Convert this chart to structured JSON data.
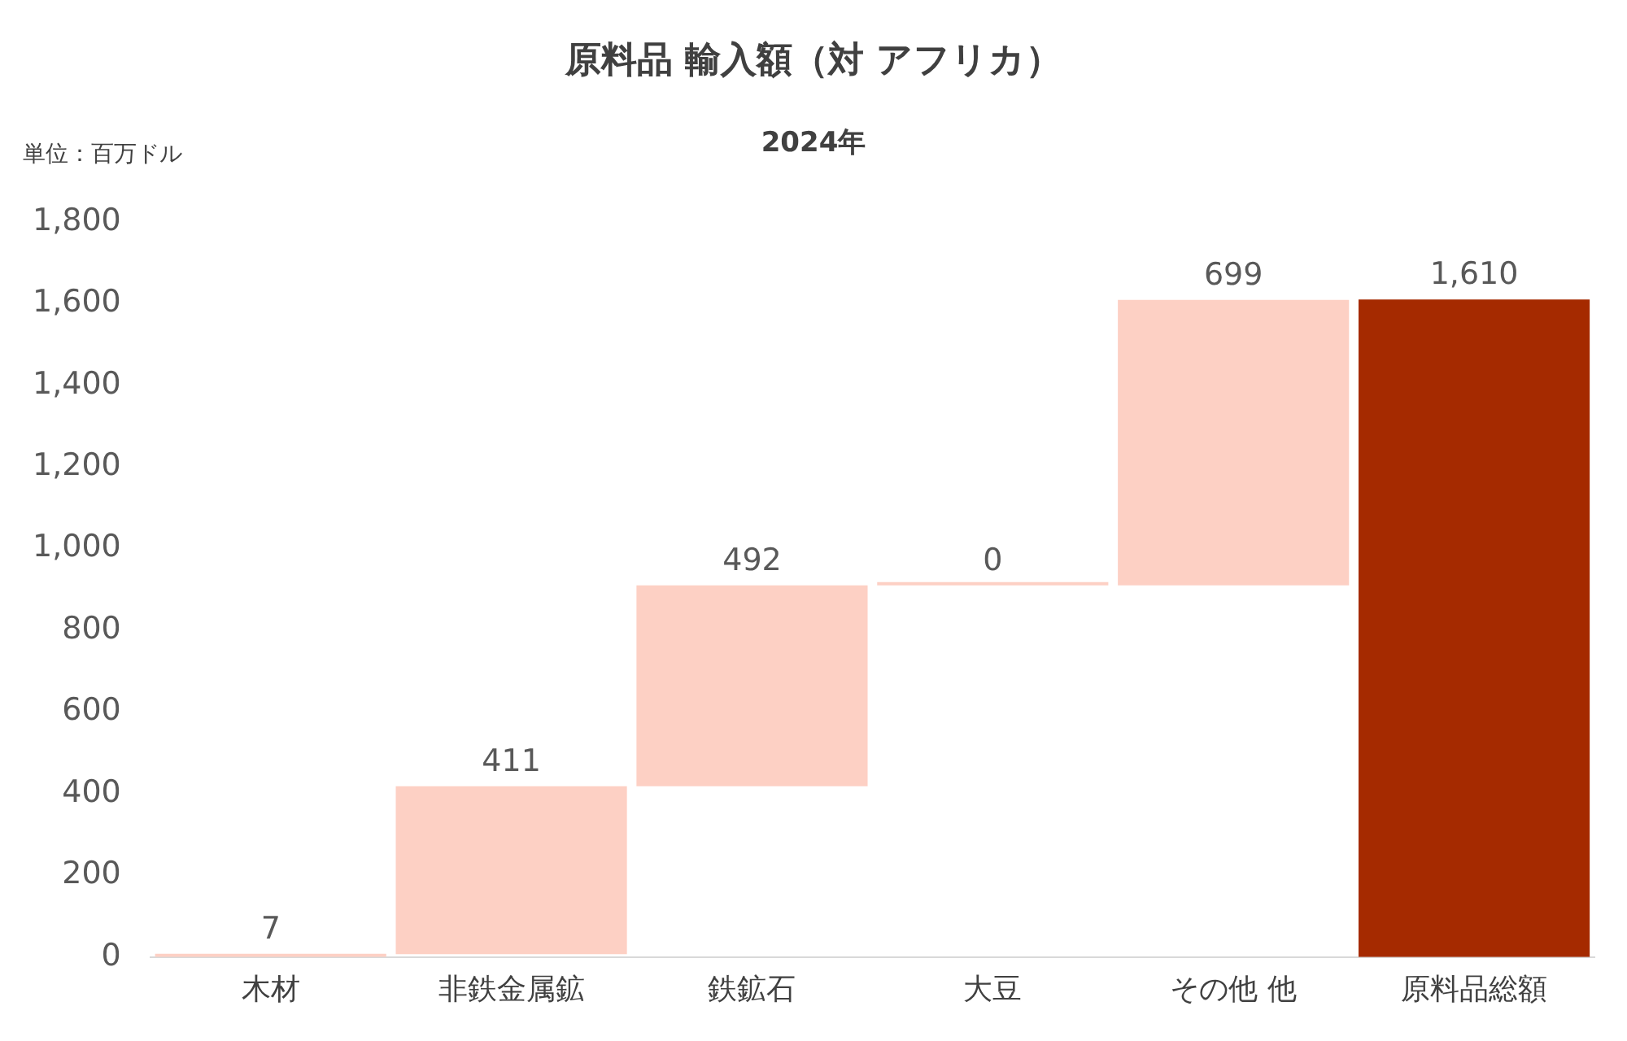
{
  "chart_data": {
    "type": "bar",
    "title": "原料品 輸入額（対 アフリカ）",
    "subtitle": "2024年",
    "ylabel": "単位：百万ドル",
    "categories": [
      "木材",
      "非鉄金属鉱",
      "鉄鉱石",
      "大豆",
      "その他 他",
      "原料品総額"
    ],
    "values": [
      7,
      411,
      492,
      0,
      699,
      1610
    ],
    "base": [
      0,
      7,
      418,
      910,
      910,
      0
    ],
    "colors": [
      "#fdd0c4",
      "#fdd0c4",
      "#fdd0c4",
      "#fdd0c4",
      "#fdd0c4",
      "#a52a00"
    ],
    "value_labels": [
      "7",
      "411",
      "492",
      "0",
      "699",
      "1,610"
    ],
    "ylim": [
      0,
      1800
    ],
    "yticks": [
      0,
      200,
      400,
      600,
      800,
      {
        "value": 1000,
        "label": "1,000"
      },
      {
        "value": 1200,
        "label": "1,200"
      },
      {
        "value": 1400,
        "label": "1,400"
      },
      {
        "value": 1600,
        "label": "1,600"
      },
      {
        "value": 1800,
        "label": "1,800"
      }
    ],
    "grid": false,
    "legend": false
  }
}
